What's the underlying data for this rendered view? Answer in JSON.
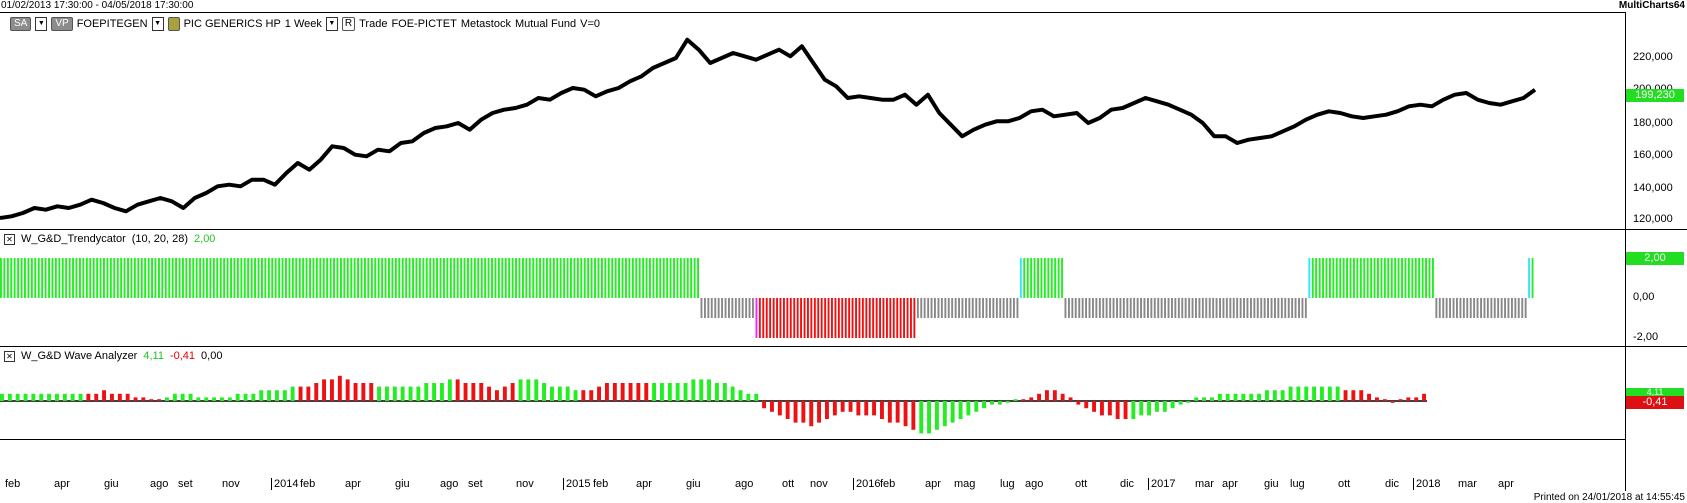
{
  "window": {
    "date_range": "01/02/2013 17:30:00 - 04/05/2018 17:30:00",
    "app_name": "MultiCharts64",
    "printed": "Printed on 24/01/2018 at 14:55:45"
  },
  "toolbar": {
    "sa_label": "SA",
    "vp_label": "VP",
    "symbol": "FOEPITEGEN",
    "desc": "PIC GENERICS HP",
    "resolution": "1 Week",
    "r_label": "R",
    "type": "Trade",
    "code": "FOE-PICTET",
    "feed": "Metastock",
    "category": "Mutual Fund",
    "volume": "V=0"
  },
  "colors": {
    "price_line": "#000000",
    "bull": "#22ee22",
    "bear": "#ee1111",
    "neutral": "#888888",
    "cyan": "#33e6ff",
    "magenta": "#ff22ff",
    "badge_green": "#22dd22",
    "badge_red": "#dd1111"
  },
  "price_pane": {
    "last_value": "199,230",
    "y_ticks": [
      "220,000",
      "200,000",
      "180,000",
      "160,000",
      "140,000",
      "120,000"
    ],
    "series": [
      121,
      122,
      124,
      127,
      126,
      128,
      127,
      129,
      132,
      130,
      127,
      125,
      129,
      131,
      133,
      131,
      127,
      133,
      136,
      140,
      141,
      140,
      144,
      144,
      141,
      148,
      154,
      150,
      156,
      164,
      163,
      159,
      158,
      162,
      161,
      166,
      167,
      172,
      175,
      176,
      178,
      174,
      180,
      184,
      186,
      187,
      189,
      193,
      192,
      196,
      199,
      198,
      194,
      197,
      199,
      203,
      206,
      211,
      214,
      217,
      228,
      222,
      214,
      217,
      220,
      218,
      216,
      219,
      222,
      218,
      224,
      214,
      204,
      200,
      193,
      194,
      193,
      192,
      192,
      195,
      189,
      195,
      184,
      177,
      170,
      174,
      177,
      179,
      179,
      181,
      185,
      186,
      182,
      183,
      184,
      178,
      181,
      186,
      187,
      190,
      193,
      191,
      189,
      186,
      183,
      178,
      170,
      170,
      166,
      168,
      169,
      170,
      173,
      176,
      180,
      183,
      185,
      184,
      182,
      181,
      182,
      183,
      185,
      188,
      189,
      188,
      192,
      195,
      196,
      192,
      190,
      189,
      191,
      193,
      198
    ],
    "y_min": 115,
    "y_max": 235
  },
  "trendycator": {
    "title": "W_G&D_Trendycator",
    "params": "(10,  20,  28)",
    "value": "2,00",
    "badge": "2,00",
    "y_ticks": [
      "2,00",
      "0,00",
      "-2,00"
    ],
    "bars": "GGGGGGGGGGGGGGGGGGGGGGGGGGGGGGGGGGGGGGGGGGGGGGGGGGGGGGGGGGGGGGGGGGGGGGGGGGGGGGGGGGGGGGGGGGGGGGGGGGGGGGGGGGGGGGGGGGGGGGGGGGGGGGGGGGGGGGGGGGGGGGGGGGGGGGGGGGGGGGGGGGGGGGGGGGGGGGGGGGGGGGGGGGGGGGGGGGGGGGGGGGGGNNNNNNNNNNNNNNNNMRRRRRRRRRRRRRRRRRRRRRRRRRRRRRRRRRRRRRRRRRRRRRRNNNNNNNNNNNNNNNNNNNNNNNNNNNNNNCGGGGGGGGGGGGNNNNNNNNNNNNNNNNNNNNNNNNNNNNNNNNNNNNNNNNNNNNNNNNNNNNNNNNNNNNNNNNNNNNNNNCGGGGGGGGGGGGGGGGGGGGGGGGGGGGGGGGGGGGNNNNNNNNNNNNNNNNNNNNNNNNNNNCG",
    "levels": {
      "G": 1,
      "N": -0.5,
      "R": -1,
      "M": -1,
      "C": 1
    }
  },
  "wave": {
    "title": "W_G&D Wave Analyzer",
    "v1": "4,11",
    "v2": "-0,41",
    "v3": "0,00",
    "badge_up": "4,11",
    "badge_down": "-0,41",
    "values": [
      2,
      2,
      2,
      2,
      2,
      2,
      2,
      2,
      2,
      2,
      2,
      2,
      2,
      3,
      2,
      2,
      2,
      1,
      1,
      0.5,
      0.5,
      1,
      2,
      2,
      2,
      1,
      1,
      1,
      1,
      1,
      2,
      2,
      2,
      3,
      3,
      3,
      3,
      4,
      4,
      4,
      5,
      6,
      6,
      7,
      6,
      5,
      5,
      5,
      4,
      4,
      4,
      4,
      4,
      4,
      5,
      5,
      5,
      6,
      6,
      5,
      5,
      5,
      4,
      3,
      4,
      5,
      6,
      6,
      6,
      5,
      4,
      4,
      4,
      3,
      3,
      3,
      4,
      5,
      5,
      5,
      5,
      5,
      5,
      5,
      5,
      5,
      5,
      5,
      6,
      6,
      6,
      5,
      5,
      4,
      3,
      2,
      2,
      -2,
      -3,
      -4,
      -5,
      -6,
      -6,
      -7,
      -6,
      -5,
      -4,
      -3,
      -3,
      -4,
      -4,
      -4,
      -5,
      -6,
      -6,
      -7,
      -8,
      -9,
      -9,
      -8,
      -7,
      -6,
      -5,
      -4,
      -3,
      -2,
      -1,
      -1,
      -0.5,
      0.5,
      0.5,
      1,
      2,
      3,
      3,
      2,
      1,
      -1,
      -2,
      -3,
      -4,
      -4,
      -5,
      -5,
      -5,
      -4,
      -4,
      -3,
      -3,
      -2,
      -1,
      -0.5,
      1,
      1,
      1,
      2,
      2,
      2,
      2,
      2,
      2,
      3,
      3,
      3,
      4,
      4,
      4,
      4,
      4,
      4,
      4,
      3,
      3,
      3,
      2,
      1,
      0.5,
      -0.5,
      0.5,
      1,
      1,
      2
    ],
    "colors": "GGGGGGGGGGGRRRRRRRRRRGGGGGGGGGGGGGGGGGRRRRRRRRRRGGGGGGGGGGRRRRRRRRGGGGGGGGRRRRRRRRRGGGGGGGGGGGGGGRRRRRRRRRRRRRRRRRRRRGGGGGGGGGGGGGRRRRRRRRRRRRRRGGGGGGGGGGGGGGGGGGGGGGGGGGGRRRRRRRRRRRRRRRRRRGGGGGGGGGGGGGGGGGGGGGRRRRRRRRRRRGGGGG"
  },
  "x_axis": {
    "labels": [
      "feb",
      "apr",
      "giu",
      "ago",
      "set",
      "nov",
      "2014",
      "feb",
      "apr",
      "giu",
      "ago",
      "set",
      "nov",
      "2015",
      "feb",
      "apr",
      "giu",
      "ago",
      "ott",
      "nov",
      "2016",
      "feb",
      "apr",
      "mag",
      "lug",
      "ago",
      "ott",
      "dic",
      "2017",
      "mar",
      "apr",
      "giu",
      "lug",
      "ott",
      "dic",
      "2018",
      "mar",
      "apr"
    ],
    "bold": [
      "2014",
      "2015",
      "2016",
      "2017",
      "2018"
    ]
  }
}
